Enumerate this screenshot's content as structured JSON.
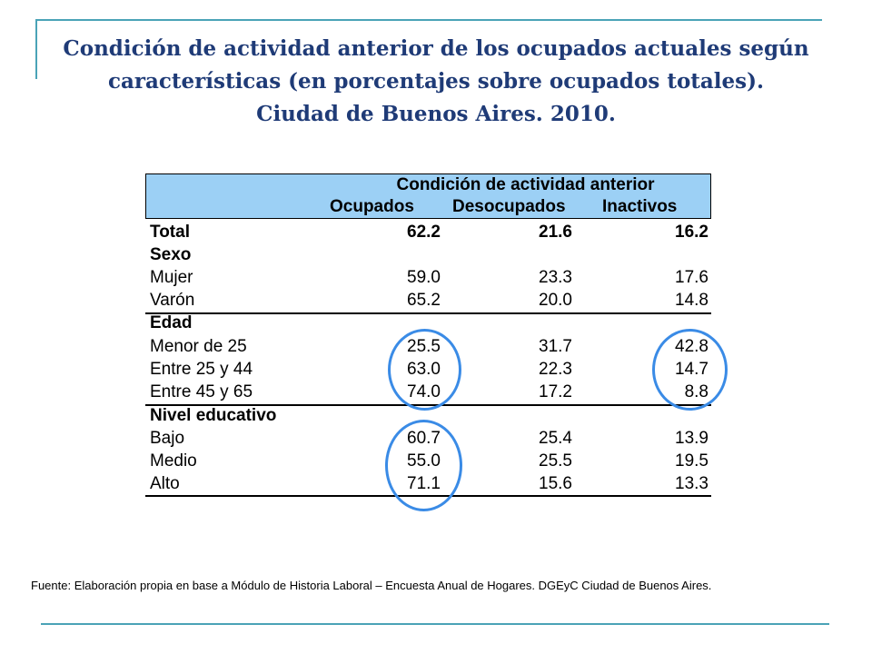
{
  "title": {
    "line1": "Condición de actividad anterior de los ocupados actuales según",
    "line2": "características (en porcentajes sobre ocupados totales).",
    "line3": "Ciudad de Buenos Aires. 2010."
  },
  "table": {
    "header_title": "Condición de actividad anterior",
    "columns": [
      "Ocupados",
      "Desocupados",
      "Inactivos"
    ],
    "rows": [
      {
        "label": "Total",
        "values": [
          "62.2",
          "21.6",
          "16.2"
        ],
        "bold": true
      },
      {
        "label": "Sexo",
        "values": [
          "",
          "",
          ""
        ],
        "bold": true
      },
      {
        "label": "Mujer",
        "values": [
          "59.0",
          "23.3",
          "17.6"
        ],
        "bold": false
      },
      {
        "label": "Varón",
        "values": [
          "65.2",
          "20.0",
          "14.8"
        ],
        "bold": false
      },
      {
        "label": "Edad",
        "values": [
          "",
          "",
          ""
        ],
        "bold": true
      },
      {
        "label": "Menor de 25",
        "values": [
          "25.5",
          "31.7",
          "42.8"
        ],
        "bold": false
      },
      {
        "label": "Entre 25 y 44",
        "values": [
          "63.0",
          "22.3",
          "14.7"
        ],
        "bold": false
      },
      {
        "label": "Entre 45 y 65",
        "values": [
          "74.0",
          "17.2",
          "8.8"
        ],
        "bold": false
      },
      {
        "label": "Nivel educativo",
        "values": [
          "",
          "",
          ""
        ],
        "bold": true
      },
      {
        "label": "Bajo",
        "values": [
          "60.7",
          "25.4",
          "13.9"
        ],
        "bold": false
      },
      {
        "label": "Medio",
        "values": [
          "55.0",
          "25.5",
          "19.5"
        ],
        "bold": false
      },
      {
        "label": "Alto",
        "values": [
          "71.1",
          "15.6",
          "13.3"
        ],
        "bold": false
      }
    ]
  },
  "source": "Fuente: Elaboración propia en base a Módulo de Historia Laboral – Encuesta Anual de Hogares. DGEyC Ciudad de Buenos Aires.",
  "colors": {
    "title": "#1f3b77",
    "frame": "#4aa3b7",
    "header_bg": "#9cd0f5",
    "highlight_circle": "#3a8be6"
  }
}
